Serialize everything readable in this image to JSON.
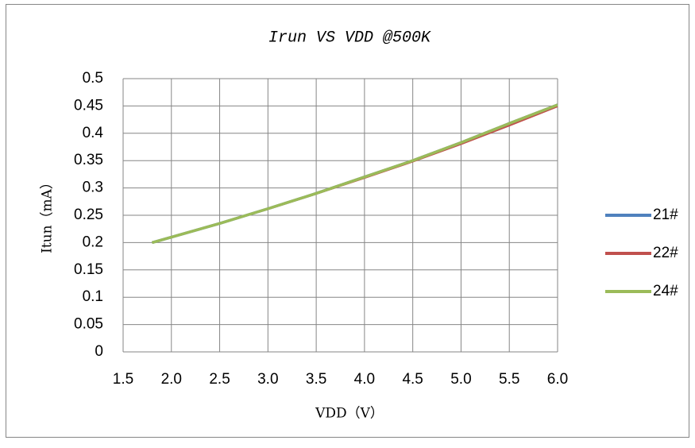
{
  "chart_data": {
    "type": "line",
    "title": "Irun VS VDD @500K",
    "x_label": "VDD（V）",
    "y_label": "Itun（mA）",
    "x": [
      1.8,
      2.0,
      2.5,
      3.0,
      3.5,
      4.0,
      4.5,
      5.0,
      5.5,
      6.0
    ],
    "series": [
      {
        "name": "21#",
        "color": "#4f81bd",
        "values": [
          0.2,
          0.21,
          0.235,
          0.262,
          0.29,
          0.32,
          0.35,
          0.383,
          0.418,
          0.452
        ]
      },
      {
        "name": "22#",
        "color": "#c0504d",
        "values": [
          0.2,
          0.21,
          0.235,
          0.261,
          0.289,
          0.318,
          0.348,
          0.38,
          0.414,
          0.449
        ]
      },
      {
        "name": "24#",
        "color": "#9bbb59",
        "values": [
          0.2,
          0.21,
          0.235,
          0.262,
          0.29,
          0.32,
          0.35,
          0.383,
          0.418,
          0.452
        ]
      }
    ],
    "xlim": [
      1.5,
      6.0
    ],
    "xticks": [
      1.5,
      {
        "value": 2,
        "label": "2.0"
      },
      2.5,
      {
        "value": 3,
        "label": "3.0"
      },
      3.5,
      {
        "value": 4,
        "label": "4.0"
      },
      4.5,
      {
        "value": 5,
        "label": "5.0"
      },
      5.5,
      {
        "value": 6,
        "label": "6.0"
      }
    ],
    "ylim": [
      0,
      0.5
    ],
    "yticks": [
      0,
      0.05,
      0.1,
      0.15,
      0.2,
      0.25,
      0.3,
      0.35,
      0.4,
      0.45,
      0.5
    ],
    "grid": true,
    "legend": "right"
  }
}
